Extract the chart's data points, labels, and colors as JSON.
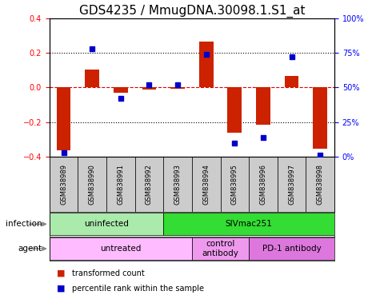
{
  "title": "GDS4235 / MmugDNA.30098.1.S1_at",
  "samples": [
    "GSM838989",
    "GSM838990",
    "GSM838991",
    "GSM838992",
    "GSM838993",
    "GSM838994",
    "GSM838995",
    "GSM838996",
    "GSM838997",
    "GSM838998"
  ],
  "transformed_count": [
    -0.365,
    0.105,
    -0.03,
    -0.01,
    -0.005,
    0.265,
    -0.26,
    -0.215,
    0.065,
    -0.355
  ],
  "percentile_rank": [
    3,
    78,
    42,
    52,
    52,
    74,
    10,
    14,
    72,
    1
  ],
  "ylim_left": [
    -0.4,
    0.4
  ],
  "ylim_right": [
    0,
    100
  ],
  "bar_color": "#CC2200",
  "dot_color": "#0000CC",
  "infection_groups": [
    {
      "label": "uninfected",
      "start": 0,
      "end": 4,
      "color": "#AAEAAA"
    },
    {
      "label": "SIVmac251",
      "start": 4,
      "end": 10,
      "color": "#33DD33"
    }
  ],
  "agent_groups": [
    {
      "label": "untreated",
      "start": 0,
      "end": 5,
      "color": "#FFBBFF"
    },
    {
      "label": "control\nantibody",
      "start": 5,
      "end": 7,
      "color": "#EE99EE"
    },
    {
      "label": "PD-1 antibody",
      "start": 7,
      "end": 10,
      "color": "#DD77DD"
    }
  ],
  "legend_items": [
    {
      "label": "transformed count",
      "color": "#CC2200"
    },
    {
      "label": "percentile rank within the sample",
      "color": "#0000CC"
    }
  ],
  "sample_box_color": "#CCCCCC",
  "zero_line_color": "#DD0000",
  "title_fontsize": 11,
  "bar_width": 0.5
}
